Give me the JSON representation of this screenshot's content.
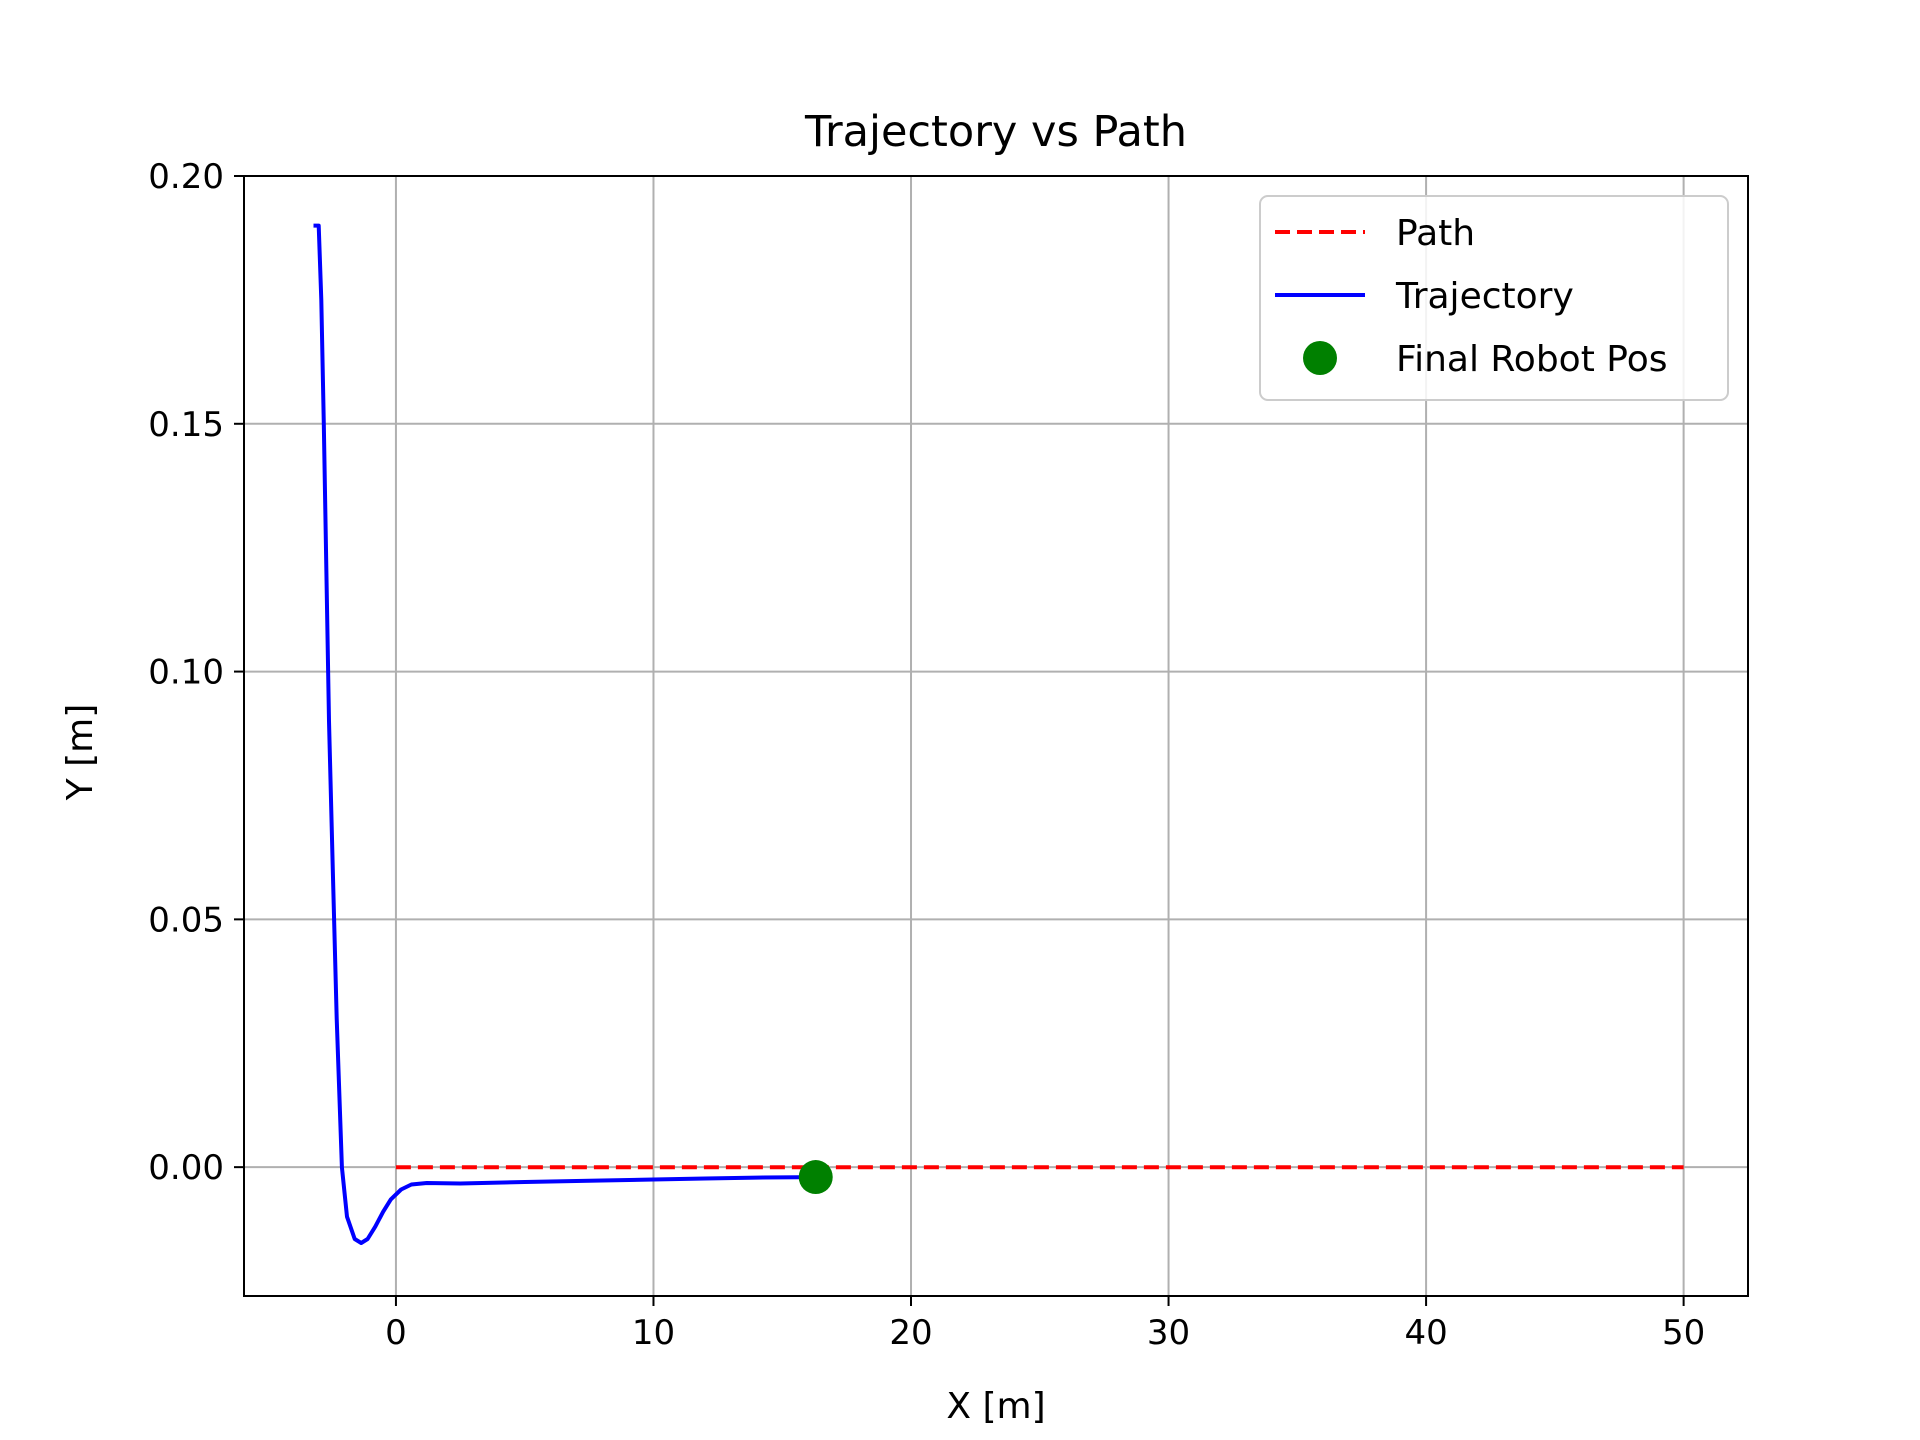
{
  "chart_data": {
    "type": "line",
    "title": "Trajectory vs Path",
    "xlabel": "X [m]",
    "ylabel": "Y [m]",
    "xlim": [
      -5.9,
      52.5
    ],
    "ylim": [
      -0.026,
      0.2
    ],
    "xticks": [
      0,
      10,
      20,
      30,
      40,
      50
    ],
    "yticks": [
      0.0,
      0.05,
      0.1,
      0.15,
      0.2
    ],
    "xtick_labels": [
      "0",
      "10",
      "20",
      "30",
      "40",
      "50"
    ],
    "ytick_labels": [
      "0.00",
      "0.05",
      "0.10",
      "0.15",
      "0.20"
    ],
    "grid": true,
    "legend_position": "top-right",
    "series": [
      {
        "name": "Path",
        "style": "dashed",
        "color": "#ff0000",
        "x": [
          0,
          50
        ],
        "y": [
          0,
          0
        ]
      },
      {
        "name": "Trajectory",
        "style": "solid",
        "color": "#0000ff",
        "x": [
          -3.2,
          -3.0,
          -2.9,
          -2.8,
          -2.7,
          -2.6,
          -2.45,
          -2.3,
          -2.1,
          -1.9,
          -1.6,
          -1.35,
          -1.1,
          -0.8,
          -0.5,
          -0.2,
          0.2,
          0.6,
          1.2,
          2.5,
          5,
          8,
          10,
          12,
          14,
          16.3
        ],
        "y": [
          0.19,
          0.19,
          0.175,
          0.15,
          0.12,
          0.09,
          0.06,
          0.03,
          0.0,
          -0.01,
          -0.0145,
          -0.0153,
          -0.0145,
          -0.012,
          -0.009,
          -0.0065,
          -0.0045,
          -0.0035,
          -0.0032,
          -0.0033,
          -0.003,
          -0.0027,
          -0.0025,
          -0.0023,
          -0.0021,
          -0.002
        ]
      },
      {
        "name": "Final Robot Pos",
        "style": "marker",
        "color": "#008000",
        "x": [
          16.3
        ],
        "y": [
          -0.002
        ]
      }
    ]
  }
}
